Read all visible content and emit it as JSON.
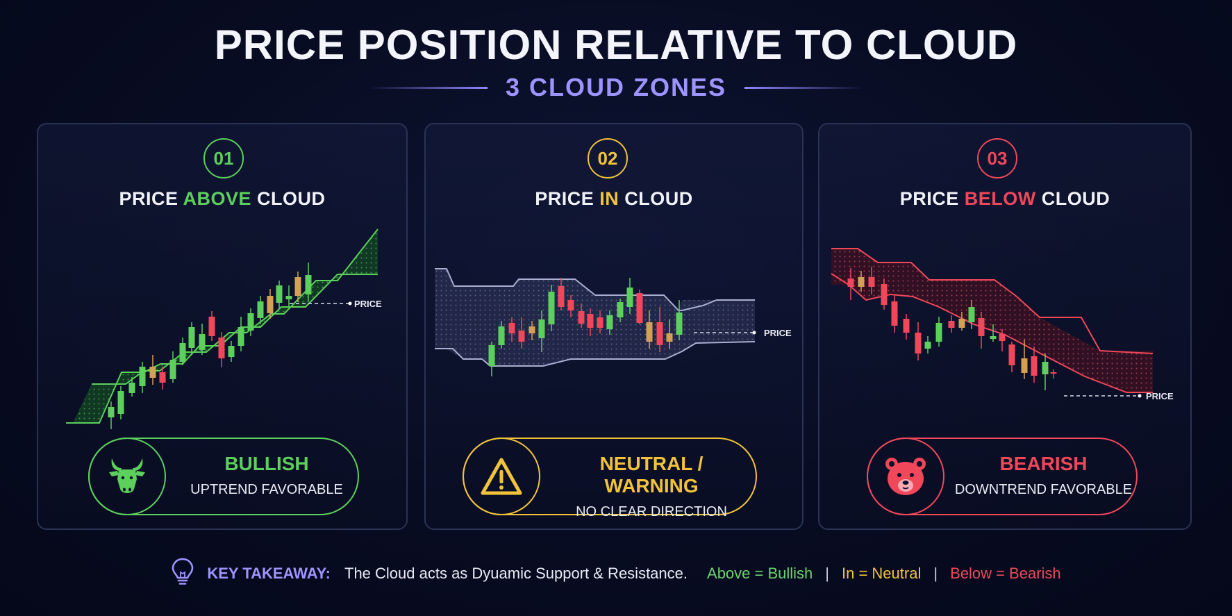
{
  "header": {
    "title": "PRICE POSITION RELATIVE TO CLOUD",
    "subtitle": "3 CLOUD ZONES"
  },
  "panels": [
    {
      "number": "01",
      "heading_pre": "PRICE ",
      "heading_key": "ABOVE",
      "heading_post": " CLOUD",
      "accent": "#5ccf5c",
      "price_label": "PRICE",
      "badge_title": "BULLISH",
      "badge_subtitle": "UPTREND FAVORABLE",
      "badge_icon": "bull-icon"
    },
    {
      "number": "02",
      "heading_pre": "PRICE ",
      "heading_key": "IN",
      "heading_post": " CLOUD",
      "accent": "#f2c33a",
      "price_label": "PRICE",
      "badge_title": "NEUTRAL / WARNING",
      "badge_subtitle": "NO CLEAR DIRECTION",
      "badge_icon": "warning-icon"
    },
    {
      "number": "03",
      "heading_pre": "PRICE ",
      "heading_key": "BELOW",
      "heading_post": " CLOUD",
      "accent": "#f0475a",
      "price_label": "PRICE",
      "badge_title": "BEARISH",
      "badge_subtitle": "DOWNTREND FAVORABLE",
      "badge_icon": "bear-icon"
    }
  ],
  "takeaway": {
    "icon": "lightbulb-icon",
    "label": "KEY TAKEAWAY:",
    "text": "The Cloud acts as Dyuamic Support & Resistance.",
    "above": "Above = Bullish",
    "in": "In = Neutral",
    "below": "Below = Bearish",
    "separator": "|"
  },
  "colors": {
    "bullish": "#5ccf5c",
    "neutral": "#f2c33a",
    "bearish": "#f0475a",
    "accent": "#9d94ff",
    "background": "#080c22"
  }
}
